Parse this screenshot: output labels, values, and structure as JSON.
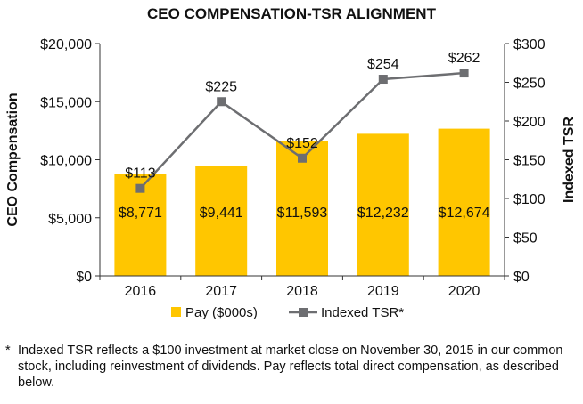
{
  "chart_data": {
    "type": "bar",
    "title": "CEO COMPENSATION-TSR ALIGNMENT",
    "categories": [
      "2016",
      "2017",
      "2018",
      "2019",
      "2020"
    ],
    "left_axis": {
      "label": "CEO Compensation",
      "range": [
        0,
        20000
      ],
      "ticks": [
        0,
        5000,
        10000,
        15000,
        20000
      ],
      "tick_labels": [
        "$0",
        "$5,000",
        "$10,000",
        "$15,000",
        "$20,000"
      ]
    },
    "right_axis": {
      "label": "Indexed TSR",
      "range": [
        0,
        300
      ],
      "ticks": [
        0,
        50,
        100,
        150,
        200,
        250,
        300
      ],
      "tick_labels": [
        "$0",
        "$50",
        "$100",
        "$150",
        "$200",
        "$250",
        "$300"
      ]
    },
    "series": [
      {
        "name": "Pay ($000s)",
        "type": "bar",
        "axis": "left",
        "color": "#FFC600",
        "values": [
          8771,
          9441,
          11593,
          12232,
          12674
        ],
        "labels": [
          "$8,771",
          "$9,441",
          "$11,593",
          "$12,232",
          "$12,674"
        ]
      },
      {
        "name": "Indexed TSR",
        "legend_label": "Indexed TSR*",
        "type": "line",
        "axis": "right",
        "color": "#6D6E71",
        "values": [
          113,
          225,
          152,
          254,
          262
        ],
        "labels": [
          "$113",
          "$225",
          "$152",
          "$254",
          "$262"
        ]
      }
    ],
    "grid": false,
    "legend_position": "bottom"
  },
  "footnote": {
    "marker": "*",
    "text": "Indexed TSR reflects a $100 investment at market close on November 30, 2015 in our common stock, including reinvestment of dividends. Pay reflects total direct compensation, as described below."
  }
}
